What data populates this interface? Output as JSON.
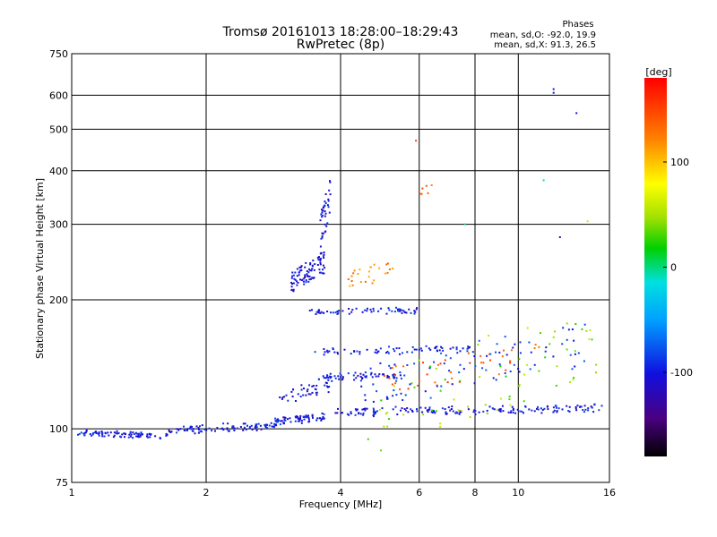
{
  "chart_data": {
    "type": "scatter",
    "title": "Tromsø 20161013 18:28:00–18:29:43",
    "subtitle": "RwPretec (8p)",
    "xlabel": "Frequency [MHz]",
    "ylabel": "Stationary phase Virtual Height [km]",
    "x_scale": "log",
    "y_scale": "log",
    "xlim": [
      1,
      16
    ],
    "ylim": [
      75,
      750
    ],
    "x_ticks": [
      1,
      2,
      4,
      6,
      8,
      10,
      16
    ],
    "x_tick_labels": [
      "1",
      "2",
      "4",
      "6",
      "8",
      "10",
      "16"
    ],
    "y_ticks": [
      75,
      100,
      200,
      300,
      400,
      500,
      600,
      750
    ],
    "y_tick_labels": [
      "75",
      "100",
      "200",
      "300",
      "400",
      "500",
      "600",
      "750"
    ],
    "grid": true,
    "stats": {
      "heading": "Phases",
      "line1": "mean, sd,O: -92.0, 19.9",
      "line2": "mean, sd,X:  91.3, 26.5"
    },
    "colorbar": {
      "label": "[deg]",
      "range": [
        -180,
        180
      ],
      "ticks": [
        100,
        0,
        -100
      ],
      "tick_labels": [
        "100",
        "0",
        "-100"
      ]
    },
    "traces": [
      {
        "x": [
          1.02,
          1.65
        ],
        "y": [
          98,
          96
        ],
        "phase": -100,
        "n": 90
      },
      {
        "x": [
          1.65,
          2.9
        ],
        "y": [
          98,
          103
        ],
        "phase": -100,
        "n": 90
      },
      {
        "x": [
          2.85,
          3.7
        ],
        "y": [
          103,
          108
        ],
        "phase": -100,
        "n": 70
      },
      {
        "x": [
          3.7,
          15.5
        ],
        "y": [
          108,
          113
        ],
        "phase": -100,
        "n": 160
      },
      {
        "x": [
          2.9,
          3.8
        ],
        "y": [
          115,
          130
        ],
        "phase": -105,
        "n": 40
      },
      {
        "x": [
          3.55,
          5.5
        ],
        "y": [
          130,
          135
        ],
        "phase": -100,
        "n": 60
      },
      {
        "x": [
          3.5,
          8.0
        ],
        "y": [
          150,
          155
        ],
        "phase": -100,
        "n": 70
      },
      {
        "x": [
          3.4,
          6.0
        ],
        "y": [
          185,
          190
        ],
        "phase": -100,
        "n": 60
      },
      {
        "x": [
          3.1,
          3.7
        ],
        "y": [
          205,
          260
        ],
        "phase": -105,
        "n": 90
      },
      {
        "x": [
          3.6,
          3.8
        ],
        "y": [
          260,
          390
        ],
        "phase": -100,
        "n": 40
      },
      {
        "x": [
          4.1,
          5.3
        ],
        "y": [
          210,
          250
        ],
        "phase": 120,
        "n": 25
      },
      {
        "x": [
          5.0,
          11.5
        ],
        "y": [
          120,
          160
        ],
        "phase": 140,
        "n": 40
      },
      {
        "x": [
          4.6,
          15.0
        ],
        "y": [
          85,
          200
        ],
        "phase": 40,
        "n": 70
      },
      {
        "x": [
          4.4,
          14.5
        ],
        "y": [
          110,
          180
        ],
        "phase": -90,
        "n": 90
      },
      {
        "x": [
          6.0,
          6.3
        ],
        "y": [
          350,
          370
        ],
        "phase": 130,
        "n": 5
      }
    ],
    "points": [
      {
        "x": 12.0,
        "y": 620,
        "phase": -100
      },
      {
        "x": 12.0,
        "y": 608,
        "phase": -100
      },
      {
        "x": 13.5,
        "y": 545,
        "phase": -100
      },
      {
        "x": 5.9,
        "y": 470,
        "phase": 150
      },
      {
        "x": 11.4,
        "y": 380,
        "phase": -10
      },
      {
        "x": 14.3,
        "y": 305,
        "phase": 60
      },
      {
        "x": 7.6,
        "y": 300,
        "phase": 0
      },
      {
        "x": 12.4,
        "y": 280,
        "phase": -100
      },
      {
        "x": 6.4,
        "y": 370,
        "phase": 120
      }
    ]
  }
}
